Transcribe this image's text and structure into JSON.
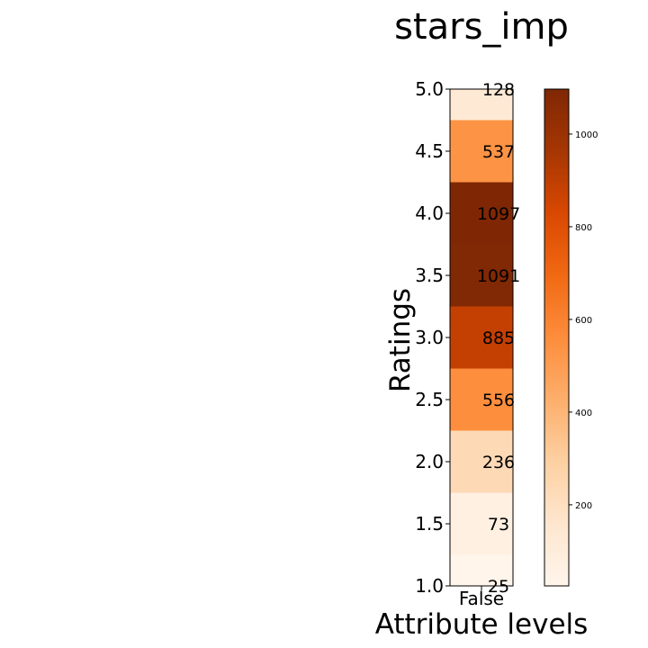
{
  "chart_data": {
    "type": "heatmap",
    "title": "stars_imp",
    "xlabel": "Attribute levels",
    "ylabel": "Ratings",
    "x_categories": [
      "False"
    ],
    "y_ticks": [
      "1.0",
      "1.5",
      "2.0",
      "2.5",
      "3.0",
      "3.5",
      "4.0",
      "4.5",
      "5.0"
    ],
    "ylim": [
      1.0,
      5.0
    ],
    "cells": [
      {
        "rating": 1.0,
        "count": 25,
        "label": "25"
      },
      {
        "rating": 1.5,
        "count": 73,
        "label": "73"
      },
      {
        "rating": 2.0,
        "count": 236,
        "label": "236"
      },
      {
        "rating": 2.5,
        "count": 556,
        "label": "556"
      },
      {
        "rating": 3.0,
        "count": 885,
        "label": "885"
      },
      {
        "rating": 3.5,
        "count": 1091,
        "label": "1091"
      },
      {
        "rating": 4.0,
        "count": 1097,
        "label": "1097"
      },
      {
        "rating": 4.5,
        "count": 537,
        "label": "537"
      },
      {
        "rating": 5.0,
        "count": 128,
        "label": "128"
      }
    ],
    "colorbar": {
      "colormap": "Oranges",
      "vmin": 25,
      "vmax": 1097,
      "ticks": [
        200,
        400,
        600,
        800,
        1000
      ],
      "tick_labels": [
        "200",
        "400",
        "600",
        "800",
        "1000"
      ]
    }
  }
}
